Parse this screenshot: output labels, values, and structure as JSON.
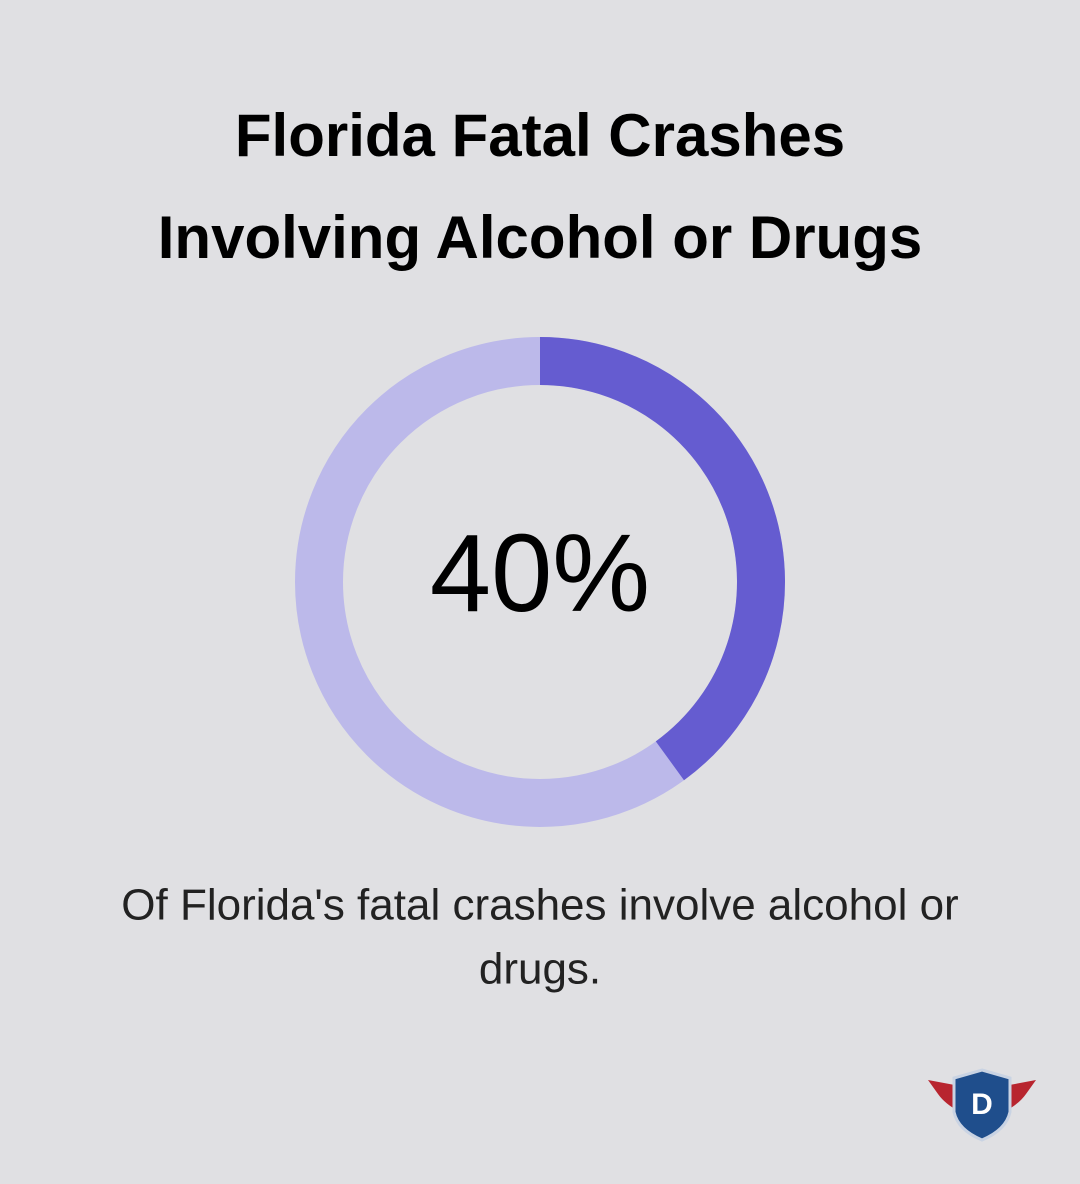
{
  "chart_data": {
    "type": "donut",
    "title": [
      "Florida Fatal Crashes",
      "Involving Alcohol or Drugs"
    ],
    "values": [
      40
    ],
    "value_labels": [
      "40%"
    ],
    "color": "#655cd0",
    "track_color": "#bcb9ea",
    "caption": [
      "Of Florida's fatal crashes involve alcohol or",
      "drugs."
    ]
  },
  "logo": {
    "text": "D"
  }
}
